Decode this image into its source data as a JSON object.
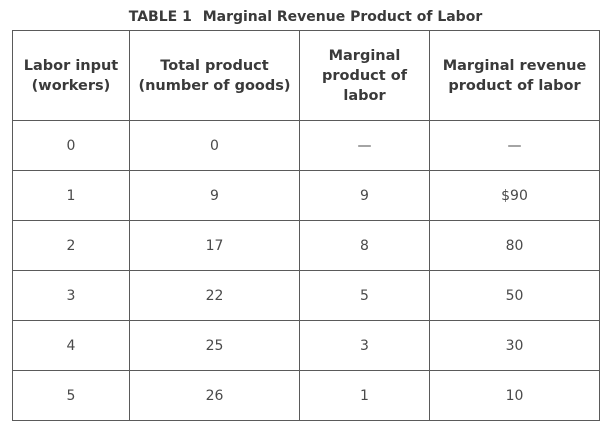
{
  "table": {
    "caption_number": "TABLE 1",
    "caption_title": "Marginal Revenue Product of Labor",
    "headers": [
      [
        "Labor input",
        "(workers)"
      ],
      [
        "Total product",
        "(number of goods)"
      ],
      [
        "Marginal",
        "product of",
        "labor"
      ],
      [
        "Marginal revenue",
        "product of labor"
      ]
    ],
    "rows": [
      [
        "0",
        "0",
        "—",
        "—"
      ],
      [
        "1",
        "9",
        "9",
        "$90"
      ],
      [
        "2",
        "17",
        "8",
        "80"
      ],
      [
        "3",
        "22",
        "5",
        "50"
      ],
      [
        "4",
        "25",
        "3",
        "30"
      ],
      [
        "5",
        "26",
        "1",
        "10"
      ]
    ]
  }
}
